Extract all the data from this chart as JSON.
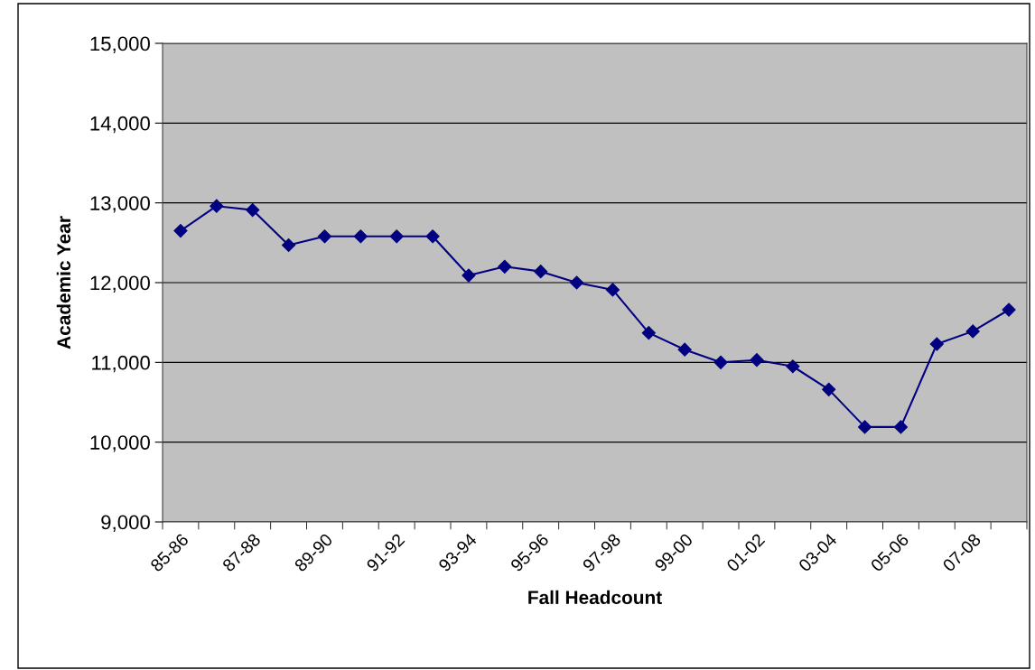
{
  "chart_data": {
    "type": "line",
    "xlabel": "Fall Headcount",
    "ylabel": "Academic Year",
    "categories": [
      "85-86",
      null,
      "87-88",
      null,
      "89-90",
      null,
      "91-92",
      null,
      "93-94",
      null,
      "95-96",
      null,
      "97-98",
      null,
      "99-00",
      null,
      "01-02",
      null,
      "03-04",
      null,
      "05-06",
      null,
      "07-08",
      null
    ],
    "series": [
      {
        "color": "#000080",
        "values": [
          12650,
          12960,
          12910,
          12470,
          12580,
          12580,
          12580,
          12580,
          12090,
          12200,
          12140,
          12000,
          11910,
          11370,
          11160,
          11000,
          11030,
          10950,
          10660,
          10190,
          10190,
          11230,
          11390,
          11660
        ]
      }
    ],
    "ylim": [
      9000,
      15000
    ],
    "yticks": [
      {
        "value": 9000,
        "label": "9,000"
      },
      {
        "value": 10000,
        "label": "10,000"
      },
      {
        "value": 11000,
        "label": "11,000"
      },
      {
        "value": 12000,
        "label": "12,000"
      },
      {
        "value": 13000,
        "label": "13,000"
      },
      {
        "value": 14000,
        "label": "14,000"
      },
      {
        "value": 15000,
        "label": "15,000"
      }
    ],
    "grid": "y",
    "marker": "diamond",
    "line_style": "solid",
    "legend": false
  }
}
